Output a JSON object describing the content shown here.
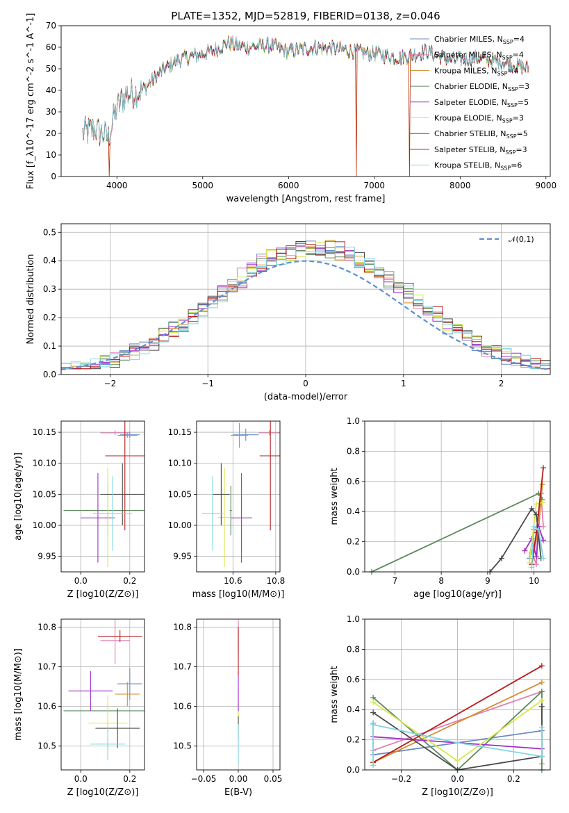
{
  "figure": {
    "title": "PLATE=1352, MJD=52819, FIBERID=0138, z=0.046"
  },
  "models": [
    {
      "name": "Chabrier MILES",
      "nssp": "4",
      "color": "#6b8cc4"
    },
    {
      "name": "Salpeter MILES",
      "nssp": "4",
      "color": "#e07fb0"
    },
    {
      "name": "Kroupa MILES",
      "nssp": "4",
      "color": "#d98a2b"
    },
    {
      "name": "Chabrier ELODIE",
      "nssp": "3",
      "color": "#5a8a5a"
    },
    {
      "name": "Salpeter ELODIE",
      "nssp": "5",
      "color": "#a02ec8"
    },
    {
      "name": "Kroupa ELODIE",
      "nssp": "3",
      "color": "#d8e84a"
    },
    {
      "name": "Chabrier STELIB",
      "nssp": "5",
      "color": "#4a4a4a"
    },
    {
      "name": "Salpeter STELIB",
      "nssp": "3",
      "color": "#b81a1a"
    },
    {
      "name": "Kroupa STELIB",
      "nssp": "6",
      "color": "#7fd6e0"
    }
  ],
  "chart_data": [
    {
      "id": "spectrum",
      "type": "line",
      "xlabel": "wavelength [Angstrom, rest frame]",
      "ylabel": "Flux [f_λ10^-17 erg cm^-2 s^-1 A^-1]",
      "xlim": [
        3350,
        9050
      ],
      "ylim": [
        0,
        70
      ],
      "xticks": [
        4000,
        5000,
        6000,
        7000,
        8000,
        9000
      ],
      "yticks": [
        0,
        10,
        20,
        30,
        40,
        50,
        60,
        70
      ],
      "legend_position": "top-right",
      "continuum_x": [
        3600,
        3750,
        3900,
        4000,
        4100,
        4300,
        4500,
        4700,
        4900,
        5100,
        5300,
        5500,
        5800,
        6000,
        6300,
        6600,
        7000,
        7300,
        7600,
        7900,
        8200,
        8500,
        8800
      ],
      "continuum_y": [
        20,
        22,
        18,
        32,
        38,
        40,
        48,
        54,
        56,
        58,
        62,
        60,
        61,
        58,
        60,
        59,
        57,
        55,
        58,
        54,
        55,
        53,
        50
      ],
      "deep_drops": [
        {
          "x": 6790,
          "y": 0
        },
        {
          "x": 7410,
          "y": 0
        },
        {
          "x": 3910,
          "y": 0
        }
      ]
    },
    {
      "id": "residual-histogram",
      "type": "bar",
      "xlabel": "(data-model)/error",
      "ylabel": "Normed distribution",
      "xlim": [
        -2.5,
        2.5
      ],
      "ylim": [
        0,
        0.53
      ],
      "xticks": [
        -2,
        -1,
        0,
        1,
        2
      ],
      "yticks": [
        0.0,
        0.1,
        0.2,
        0.3,
        0.4,
        0.5
      ],
      "grid": true,
      "legend_position": "top-right",
      "reference_curve": {
        "name": "𝒩(0,1)",
        "mean": 0,
        "sigma": 1,
        "color": "#5b8fd6"
      },
      "bin_width": 0.1
    },
    {
      "id": "age-vs-metallicity",
      "type": "scatter",
      "xlabel": "Z [log10(Z/Z⊙)]",
      "ylabel": "age [log10(age/yr)]",
      "xlim": [
        -0.08,
        0.26
      ],
      "ylim": [
        9.925,
        10.168
      ],
      "xticks": [
        0.0,
        0.2
      ],
      "yticks": [
        9.95,
        10.0,
        10.05,
        10.1,
        10.15
      ],
      "grid": true,
      "points": [
        {
          "x": 0.2,
          "xerr": 0.04,
          "y": 10.146,
          "yerr": 0.005
        },
        {
          "x": 0.14,
          "xerr": 0.06,
          "y": 10.149,
          "yerr": 0.004
        },
        {
          "x": 0.19,
          "xerr": 0.04,
          "y": 10.145,
          "yerr": 0.004
        },
        {
          "x": 0.11,
          "xerr": 0.18,
          "y": 10.024,
          "yerr": 0.04
        },
        {
          "x": 0.07,
          "xerr": 0.07,
          "y": 10.012,
          "yerr": 0.072
        },
        {
          "x": 0.11,
          "xerr": 0.01,
          "y": 10.013,
          "yerr": 0.08
        },
        {
          "x": 0.17,
          "xerr": 0.09,
          "y": 10.05,
          "yerr": 0.05
        },
        {
          "x": 0.18,
          "xerr": 0.08,
          "y": 10.112,
          "yerr": 0.12
        },
        {
          "x": 0.13,
          "xerr": 0.08,
          "y": 10.019,
          "yerr": 0.06
        }
      ]
    },
    {
      "id": "age-vs-mass",
      "type": "scatter",
      "xlabel": "mass [log10(M/M⊙)]",
      "ylabel": "",
      "xlim": [
        10.43,
        10.82
      ],
      "ylim": [
        9.925,
        10.168
      ],
      "xticks": [
        10.6,
        10.8
      ],
      "yticks": [
        9.95,
        10.0,
        10.05,
        10.1,
        10.15
      ],
      "grid": true,
      "points": [
        {
          "x": 10.66,
          "xerr": 0.06,
          "y": 10.146,
          "yerr": 0.01
        },
        {
          "x": 10.77,
          "xerr": 0.05,
          "y": 10.149,
          "yerr": 0.004
        },
        {
          "x": 10.63,
          "xerr": 0.04,
          "y": 10.145,
          "yerr": 0.02
        },
        {
          "x": 10.59,
          "xerr": 0.005,
          "y": 10.024,
          "yerr": 0.04
        },
        {
          "x": 10.64,
          "xerr": 0.05,
          "y": 10.012,
          "yerr": 0.072
        },
        {
          "x": 10.56,
          "xerr": 0.03,
          "y": 10.013,
          "yerr": 0.08
        },
        {
          "x": 10.545,
          "xerr": 0.04,
          "y": 10.05,
          "yerr": 0.05
        },
        {
          "x": 10.775,
          "xerr": 0.05,
          "y": 10.112,
          "yerr": 0.12
        },
        {
          "x": 10.505,
          "xerr": 0.05,
          "y": 10.019,
          "yerr": 0.06
        }
      ]
    },
    {
      "id": "mass-weight-vs-age",
      "type": "line",
      "xlabel": "age [log10(age/yr)]",
      "ylabel": "mass weight",
      "xlim": [
        6.35,
        10.35
      ],
      "ylim": [
        0,
        1
      ],
      "xticks": [
        7,
        8,
        9,
        10
      ],
      "yticks": [
        0.0,
        0.2,
        0.4,
        0.6,
        0.8,
        1.0
      ],
      "grid": true,
      "series": [
        {
          "x": [
            9.9,
            10.0,
            10.1,
            10.15
          ],
          "y": [
            0.09,
            0.28,
            0.28,
            0.52
          ]
        },
        {
          "x": [
            9.95,
            10.05,
            10.15,
            10.2
          ],
          "y": [
            0.13,
            0.05,
            0.52,
            0.3
          ]
        },
        {
          "x": [
            9.95,
            10.1,
            10.18
          ],
          "y": [
            0.05,
            0.3,
            0.58
          ]
        },
        {
          "x": [
            6.5,
            10.1,
            10.18
          ],
          "y": [
            0.0,
            0.52,
            0.48
          ]
        },
        {
          "x": [
            9.8,
            9.95,
            10.05,
            10.1,
            10.2
          ],
          "y": [
            0.14,
            0.22,
            0.1,
            0.3,
            0.21
          ]
        },
        {
          "x": [
            9.9,
            10.05,
            10.18
          ],
          "y": [
            0.06,
            0.45,
            0.46
          ]
        },
        {
          "x": [
            9.05,
            9.3,
            9.95,
            10.05,
            10.15
          ],
          "y": [
            0.0,
            0.09,
            0.42,
            0.38,
            0.09
          ]
        },
        {
          "x": [
            9.95,
            10.05,
            10.2
          ],
          "y": [
            0.05,
            0.26,
            0.69
          ]
        },
        {
          "x": [
            9.95,
            10.0,
            10.1,
            10.2
          ],
          "y": [
            0.03,
            0.3,
            0.28,
            0.09
          ]
        }
      ]
    },
    {
      "id": "mass-vs-metallicity",
      "type": "scatter",
      "xlabel": "Z [log10(Z/Z⊙)]",
      "ylabel": "mass [log10(M/M⊙)]",
      "xlim": [
        -0.08,
        0.26
      ],
      "ylim": [
        10.44,
        10.82
      ],
      "xticks": [
        0.0,
        0.2
      ],
      "yticks": [
        10.5,
        10.6,
        10.7,
        10.8
      ],
      "grid": true,
      "points": [
        {
          "x": 0.2,
          "xerr": 0.05,
          "y": 10.657,
          "yerr": 0.04
        },
        {
          "x": 0.14,
          "xerr": 0.06,
          "y": 10.766,
          "yerr": 0.06
        },
        {
          "x": 0.19,
          "xerr": 0.05,
          "y": 10.631,
          "yerr": 0.03
        },
        {
          "x": 0.11,
          "xerr": 0.18,
          "y": 10.589,
          "yerr": 0.005
        },
        {
          "x": 0.04,
          "xerr": 0.09,
          "y": 10.639,
          "yerr": 0.05
        },
        {
          "x": 0.11,
          "xerr": 0.08,
          "y": 10.558,
          "yerr": 0.07
        },
        {
          "x": 0.15,
          "xerr": 0.09,
          "y": 10.545,
          "yerr": 0.05
        },
        {
          "x": 0.16,
          "xerr": 0.09,
          "y": 10.777,
          "yerr": 0.015
        },
        {
          "x": 0.11,
          "xerr": 0.07,
          "y": 10.505,
          "yerr": 0.04
        }
      ]
    },
    {
      "id": "mass-vs-ebv",
      "type": "scatter",
      "xlabel": "E(B-V)",
      "ylabel": "",
      "xlim": [
        -0.06,
        0.06
      ],
      "ylim": [
        10.44,
        10.82
      ],
      "xticks": [
        -0.05,
        0.0,
        0.05
      ],
      "yticks": [
        10.5,
        10.6,
        10.7,
        10.8
      ],
      "grid": true,
      "points": [
        {
          "x": 0.0,
          "xerr": 0,
          "y": 10.776,
          "yerr": 0.04
        },
        {
          "x": 0.0,
          "xerr": 0,
          "y": 10.766,
          "yerr": 0.05
        },
        {
          "x": 0.0,
          "xerr": 0,
          "y": 10.631,
          "yerr": 0.03
        },
        {
          "x": 0.0,
          "xerr": 0,
          "y": 10.589,
          "yerr": 0.02
        },
        {
          "x": 0.0,
          "xerr": 0,
          "y": 10.639,
          "yerr": 0.05
        },
        {
          "x": 0.0,
          "xerr": 0,
          "y": 10.558,
          "yerr": 0.03
        },
        {
          "x": 0.0,
          "xerr": 0,
          "y": 10.545,
          "yerr": 0.03
        },
        {
          "x": 0.0,
          "xerr": 0,
          "y": 10.74,
          "yerr": 0.06
        },
        {
          "x": 0.0,
          "xerr": 0,
          "y": 10.505,
          "yerr": 0.05
        }
      ]
    },
    {
      "id": "mass-weight-vs-metallicity",
      "type": "line",
      "xlabel": "Z [log10(Z/Z⊙)]",
      "ylabel": "mass weight",
      "xlim": [
        -0.33,
        0.33
      ],
      "ylim": [
        0,
        1
      ],
      "xticks": [
        -0.2,
        0.0,
        0.2
      ],
      "yticks": [
        0.0,
        0.2,
        0.4,
        0.6,
        0.8,
        1.0
      ],
      "grid": true,
      "series": [
        {
          "x": [
            -0.3,
            -0.3,
            0.3,
            0.3
          ],
          "y": [
            0.31,
            0.1,
            0.26,
            0.52
          ]
        },
        {
          "x": [
            -0.3,
            0.3,
            0.3
          ],
          "y": [
            0.13,
            0.52,
            0.04
          ]
        },
        {
          "x": [
            -0.3,
            0.3
          ],
          "y": [
            0.05,
            0.58
          ]
        },
        {
          "x": [
            -0.3,
            0.0,
            0.3,
            0.3
          ],
          "y": [
            0.48,
            0.0,
            0.52,
            0.0
          ]
        },
        {
          "x": [
            -0.3,
            0.3
          ],
          "y": [
            0.22,
            0.14
          ]
        },
        {
          "x": [
            -0.3,
            0.0,
            0.3
          ],
          "y": [
            0.45,
            0.06,
            0.46
          ]
        },
        {
          "x": [
            -0.3,
            0.0,
            0.3,
            0.3
          ],
          "y": [
            0.38,
            0.0,
            0.09,
            0.42
          ]
        },
        {
          "x": [
            -0.3,
            0.3
          ],
          "y": [
            0.05,
            0.69
          ]
        },
        {
          "x": [
            -0.3,
            -0.3,
            0.0,
            0.3,
            0.3
          ],
          "y": [
            0.03,
            0.3,
            0.18,
            0.09,
            0.28
          ]
        }
      ]
    }
  ]
}
